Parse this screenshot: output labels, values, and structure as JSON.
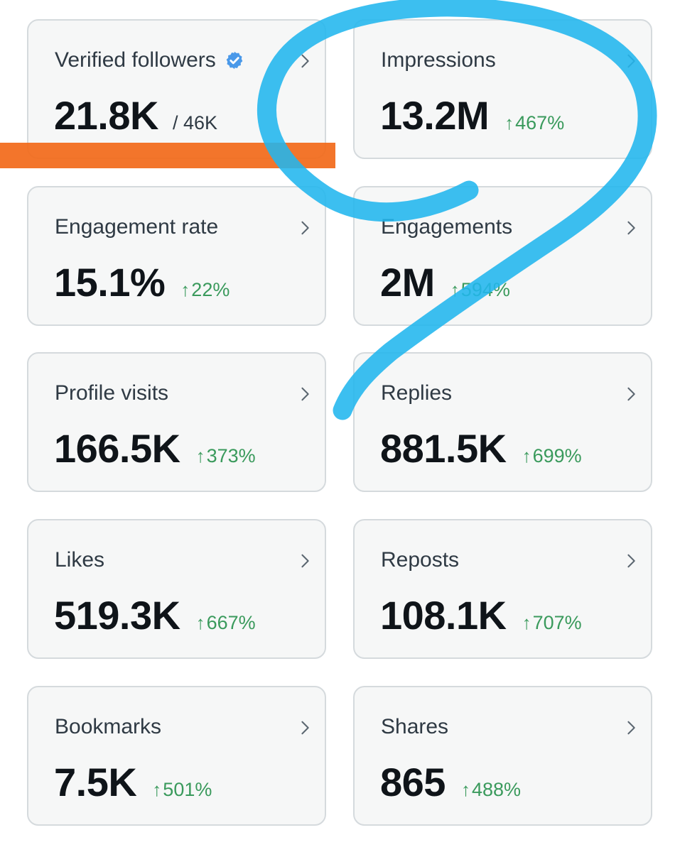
{
  "cards": [
    {
      "label": "Verified followers",
      "value": "21.8K",
      "total": "/ 46K",
      "verified_icon": "verified-badge-icon"
    },
    {
      "label": "Impressions",
      "value": "13.2M",
      "arrow": "↑",
      "change": "467%"
    },
    {
      "label": "Engagement rate",
      "value": "15.1%",
      "arrow": "↑",
      "change": "22%"
    },
    {
      "label": "Engagements",
      "value": "2M",
      "arrow": "↑",
      "change": "594%"
    },
    {
      "label": "Profile visits",
      "value": "166.5K",
      "arrow": "↑",
      "change": "373%"
    },
    {
      "label": "Replies",
      "value": "881.5K",
      "arrow": "↑",
      "change": "699%"
    },
    {
      "label": "Likes",
      "value": "519.3K",
      "arrow": "↑",
      "change": "667%"
    },
    {
      "label": "Reposts",
      "value": "108.1K",
      "arrow": "↑",
      "change": "707%"
    },
    {
      "label": "Bookmarks",
      "value": "7.5K",
      "arrow": "↑",
      "change": "501%"
    },
    {
      "label": "Shares",
      "value": "865",
      "arrow": "↑",
      "change": "488%"
    }
  ],
  "colors": {
    "positive_change": "#3a9a5c",
    "verified_badge": "#4a99e9",
    "orange_markup": "#f26a1b",
    "blue_markup": "#21b6ee"
  }
}
